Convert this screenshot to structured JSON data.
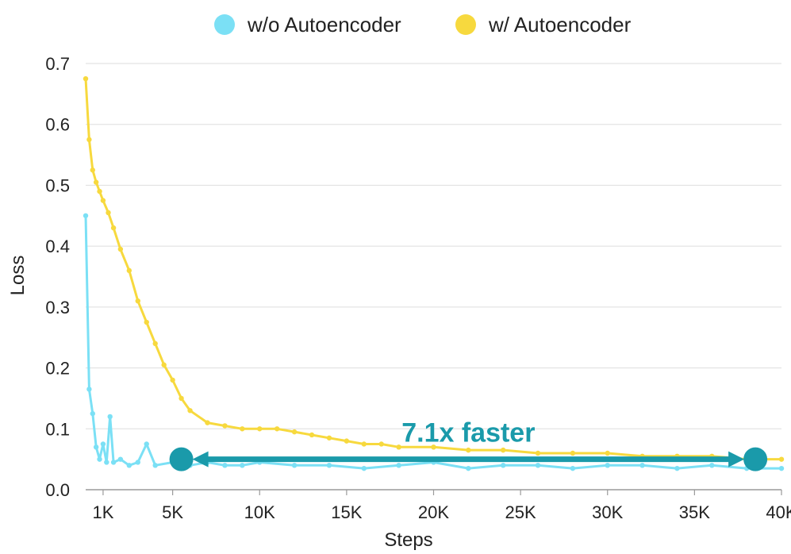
{
  "chart_data": {
    "type": "line",
    "title": "",
    "xlabel": "Steps",
    "ylabel": "Loss",
    "xlim": [
      0,
      40000
    ],
    "ylim": [
      0,
      0.7
    ],
    "x_ticks": [
      {
        "value": 1000,
        "label": "1K"
      },
      {
        "value": 5000,
        "label": "5K"
      },
      {
        "value": 10000,
        "label": "10K"
      },
      {
        "value": 15000,
        "label": "15K"
      },
      {
        "value": 20000,
        "label": "20K"
      },
      {
        "value": 25000,
        "label": "25K"
      },
      {
        "value": 30000,
        "label": "30K"
      },
      {
        "value": 35000,
        "label": "35K"
      },
      {
        "value": 40000,
        "label": "40K"
      }
    ],
    "y_ticks": [
      {
        "value": 0.0,
        "label": "0.0"
      },
      {
        "value": 0.1,
        "label": "0.1"
      },
      {
        "value": 0.2,
        "label": "0.2"
      },
      {
        "value": 0.3,
        "label": "0.3"
      },
      {
        "value": 0.4,
        "label": "0.4"
      },
      {
        "value": 0.5,
        "label": "0.5"
      },
      {
        "value": 0.6,
        "label": "0.6"
      },
      {
        "value": 0.7,
        "label": "0.7"
      }
    ],
    "grid": "horizontal",
    "legend_position": "top",
    "series": [
      {
        "name": "w/o Autoencoder",
        "color": "#7be0f5",
        "x": [
          0,
          200,
          400,
          600,
          800,
          1000,
          1200,
          1400,
          1600,
          2000,
          2500,
          3000,
          3500,
          4000,
          5000,
          6000,
          7000,
          8000,
          9000,
          10000,
          12000,
          14000,
          16000,
          18000,
          20000,
          22000,
          24000,
          26000,
          28000,
          30000,
          32000,
          34000,
          36000,
          38000,
          40000
        ],
        "y": [
          0.45,
          0.165,
          0.125,
          0.07,
          0.05,
          0.075,
          0.045,
          0.12,
          0.045,
          0.05,
          0.04,
          0.045,
          0.075,
          0.04,
          0.045,
          0.04,
          0.045,
          0.04,
          0.04,
          0.045,
          0.04,
          0.04,
          0.035,
          0.04,
          0.045,
          0.035,
          0.04,
          0.04,
          0.035,
          0.04,
          0.04,
          0.035,
          0.04,
          0.035,
          0.035
        ]
      },
      {
        "name": "w/ Autoencoder",
        "color": "#f7d93e",
        "x": [
          0,
          200,
          400,
          600,
          800,
          1000,
          1300,
          1600,
          2000,
          2500,
          3000,
          3500,
          4000,
          4500,
          5000,
          5500,
          6000,
          7000,
          8000,
          9000,
          10000,
          11000,
          12000,
          13000,
          14000,
          15000,
          16000,
          17000,
          18000,
          20000,
          22000,
          24000,
          26000,
          28000,
          30000,
          32000,
          34000,
          36000,
          38000,
          40000
        ],
        "y": [
          0.675,
          0.575,
          0.525,
          0.505,
          0.49,
          0.475,
          0.455,
          0.43,
          0.395,
          0.36,
          0.31,
          0.275,
          0.24,
          0.205,
          0.18,
          0.15,
          0.13,
          0.11,
          0.105,
          0.1,
          0.1,
          0.1,
          0.095,
          0.09,
          0.085,
          0.08,
          0.075,
          0.075,
          0.07,
          0.07,
          0.065,
          0.065,
          0.06,
          0.06,
          0.06,
          0.055,
          0.055,
          0.055,
          0.05,
          0.05
        ]
      }
    ],
    "annotation": {
      "text": "7.1x faster",
      "color": "#1a9aaa",
      "from": {
        "x": 5500,
        "y": 0.05
      },
      "to": {
        "x": 38500,
        "y": 0.05
      }
    }
  }
}
